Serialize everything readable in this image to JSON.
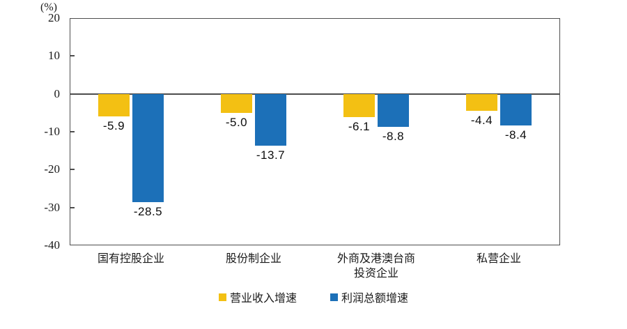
{
  "chart_data": {
    "type": "bar",
    "title": "",
    "unit_label": "(%)",
    "categories": [
      "国有控股企业",
      "股份制企业",
      "外商及港澳台商\n投资企业",
      "私营企业"
    ],
    "series": [
      {
        "key": "revenue-growth",
        "name": "营业收入增速",
        "color": "#F3C013",
        "values": [
          -5.9,
          -5.0,
          -6.1,
          -4.4
        ]
      },
      {
        "key": "profit-growth",
        "name": "利润总额增速",
        "color": "#1C70B8",
        "values": [
          -28.5,
          -13.7,
          -8.8,
          -8.4
        ]
      }
    ],
    "ylim": [
      -40,
      20
    ],
    "yticks": [
      20,
      10,
      0,
      -10,
      -20,
      -30,
      -40
    ],
    "value_label_decimals": 1,
    "legend_position": "bottom",
    "grid": false,
    "axis_color": "#4d4d4d",
    "text_color": "#1a1a1a"
  }
}
